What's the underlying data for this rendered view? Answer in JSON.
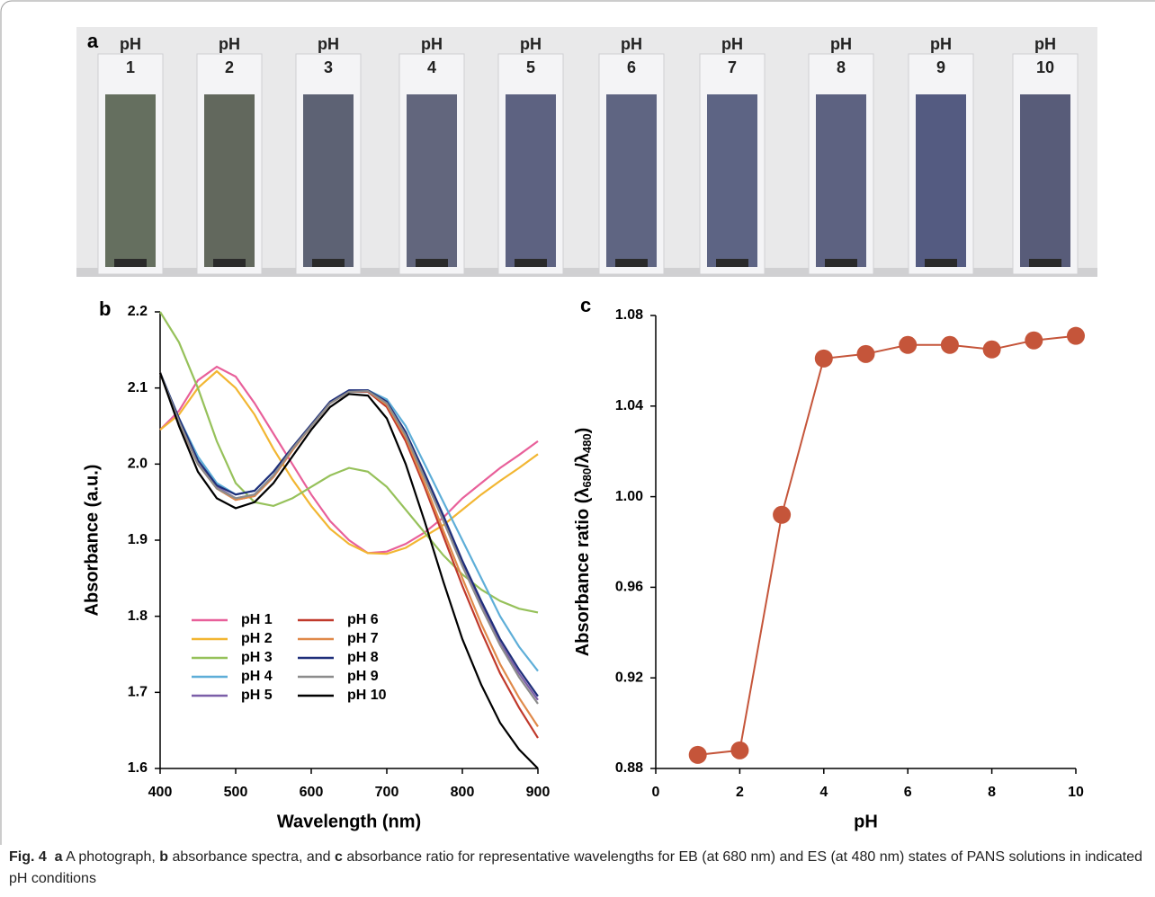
{
  "panel_a": {
    "label": "a",
    "vial_labels": [
      [
        "pH",
        "1"
      ],
      [
        "pH",
        "2"
      ],
      [
        "pH",
        "3"
      ],
      [
        "pH",
        "4"
      ],
      [
        "pH",
        "5"
      ],
      [
        "pH",
        "6"
      ],
      [
        "pH",
        "7"
      ],
      [
        "pH",
        "8"
      ],
      [
        "pH",
        "9"
      ],
      [
        "pH",
        "10"
      ]
    ]
  },
  "chart_data": [
    {
      "type": "line",
      "panel_label": "b",
      "xlabel": "Wavelength (nm)",
      "ylabel": "Absorbance (a.u.)",
      "x": [
        400,
        425,
        450,
        475,
        500,
        525,
        550,
        575,
        600,
        625,
        650,
        675,
        700,
        725,
        750,
        775,
        800,
        825,
        850,
        875,
        900
      ],
      "xlim": [
        400,
        900
      ],
      "xticks": [
        400,
        500,
        600,
        700,
        800,
        900
      ],
      "ylim": [
        1.6,
        2.2
      ],
      "yticks": [
        1.6,
        1.7,
        1.8,
        1.9,
        {
          "value": 2,
          "label": "2.0"
        },
        2.1,
        2.2
      ],
      "legend": "lower left",
      "series": [
        {
          "name": "pH 1",
          "color": "#e8609a",
          "values": [
            2.045,
            2.07,
            2.11,
            2.128,
            2.115,
            2.08,
            2.04,
            2.0,
            1.96,
            1.925,
            1.9,
            1.883,
            1.885,
            1.895,
            1.91,
            1.93,
            1.955,
            1.975,
            1.995,
            2.012,
            2.03
          ]
        },
        {
          "name": "pH 2",
          "color": "#f2b632",
          "values": [
            2.045,
            2.065,
            2.1,
            2.122,
            2.1,
            2.065,
            2.02,
            1.98,
            1.945,
            1.915,
            1.895,
            1.883,
            1.882,
            1.89,
            1.905,
            1.92,
            1.94,
            1.96,
            1.978,
            1.995,
            2.013
          ]
        },
        {
          "name": "pH 3",
          "color": "#96c15a",
          "values": [
            2.2,
            2.16,
            2.1,
            2.03,
            1.975,
            1.95,
            1.945,
            1.955,
            1.97,
            1.985,
            1.995,
            1.99,
            1.97,
            1.94,
            1.91,
            1.88,
            1.855,
            1.835,
            1.82,
            1.81,
            1.805
          ]
        },
        {
          "name": "pH 4",
          "color": "#5eaed8",
          "values": [
            2.12,
            2.06,
            2.01,
            1.975,
            1.96,
            1.965,
            1.99,
            2.02,
            2.05,
            2.08,
            2.095,
            2.097,
            2.085,
            2.05,
            2.0,
            1.95,
            1.9,
            1.85,
            1.8,
            1.76,
            1.728
          ]
        },
        {
          "name": "pH 5",
          "color": "#7b5ea8",
          "values": [
            2.12,
            2.055,
            2.0,
            1.97,
            1.955,
            1.96,
            1.985,
            2.02,
            2.05,
            2.08,
            2.095,
            2.095,
            2.08,
            2.04,
            1.985,
            1.93,
            1.87,
            1.815,
            1.765,
            1.725,
            1.69
          ]
        },
        {
          "name": "pH 6",
          "color": "#c0392b",
          "values": [
            2.12,
            2.055,
            2.0,
            1.968,
            1.953,
            1.958,
            1.983,
            2.018,
            2.05,
            2.08,
            2.095,
            2.095,
            2.075,
            2.03,
            1.97,
            1.905,
            1.84,
            1.78,
            1.725,
            1.68,
            1.64
          ]
        },
        {
          "name": "pH 7",
          "color": "#e0894a",
          "values": [
            2.12,
            2.055,
            2.0,
            1.968,
            1.953,
            1.958,
            1.983,
            2.018,
            2.05,
            2.08,
            2.095,
            2.096,
            2.078,
            2.035,
            1.975,
            1.912,
            1.85,
            1.79,
            1.737,
            1.693,
            1.655
          ]
        },
        {
          "name": "pH 8",
          "color": "#1f2f7a",
          "values": [
            2.12,
            2.06,
            2.005,
            1.972,
            1.96,
            1.965,
            1.99,
            2.022,
            2.052,
            2.082,
            2.097,
            2.097,
            2.082,
            2.042,
            1.988,
            1.932,
            1.873,
            1.82,
            1.77,
            1.73,
            1.695
          ]
        },
        {
          "name": "pH 9",
          "color": "#8c8c8c",
          "values": [
            2.12,
            2.056,
            2.0,
            1.968,
            1.955,
            1.96,
            1.985,
            2.02,
            2.05,
            2.08,
            2.095,
            2.096,
            2.08,
            2.038,
            1.982,
            1.925,
            1.866,
            1.812,
            1.762,
            1.72,
            1.685
          ]
        },
        {
          "name": "pH 10",
          "color": "#000000",
          "values": [
            2.12,
            2.05,
            1.99,
            1.955,
            1.942,
            1.95,
            1.975,
            2.01,
            2.045,
            2.075,
            2.092,
            2.09,
            2.06,
            2.0,
            1.925,
            1.845,
            1.77,
            1.71,
            1.66,
            1.625,
            1.6
          ]
        }
      ]
    },
    {
      "type": "line",
      "panel_label": "c",
      "xlabel": "pH",
      "ylabel": [
        "Absorbance ratio (λ",
        "680",
        "/λ",
        "480",
        ")"
      ],
      "x": [
        1,
        2,
        3,
        4,
        5,
        6,
        7,
        8,
        9,
        10
      ],
      "xlim": [
        0,
        10
      ],
      "xticks": [
        0,
        2,
        4,
        6,
        8,
        10
      ],
      "ylim": [
        0.88,
        1.08
      ],
      "yticks": [
        0.88,
        0.92,
        0.96,
        {
          "value": 1,
          "label": "1.00"
        },
        1.04,
        1.08
      ],
      "markers": true,
      "series": [
        {
          "color": "#c5553a",
          "values": [
            0.886,
            0.888,
            0.992,
            1.061,
            1.063,
            1.067,
            1.067,
            1.065,
            1.069,
            1.071
          ]
        }
      ]
    }
  ],
  "caption": {
    "fig": "Fig. 4",
    "a": "a",
    "t1": " A photograph, ",
    "b": "b",
    "t2": " absorbance spectra, and ",
    "c": "c",
    "t3": " absorbance ratio for representative wavelengths for EB (at 680 nm) and ES (at 480 nm) states of PANS solutions in indicated pH conditions"
  }
}
